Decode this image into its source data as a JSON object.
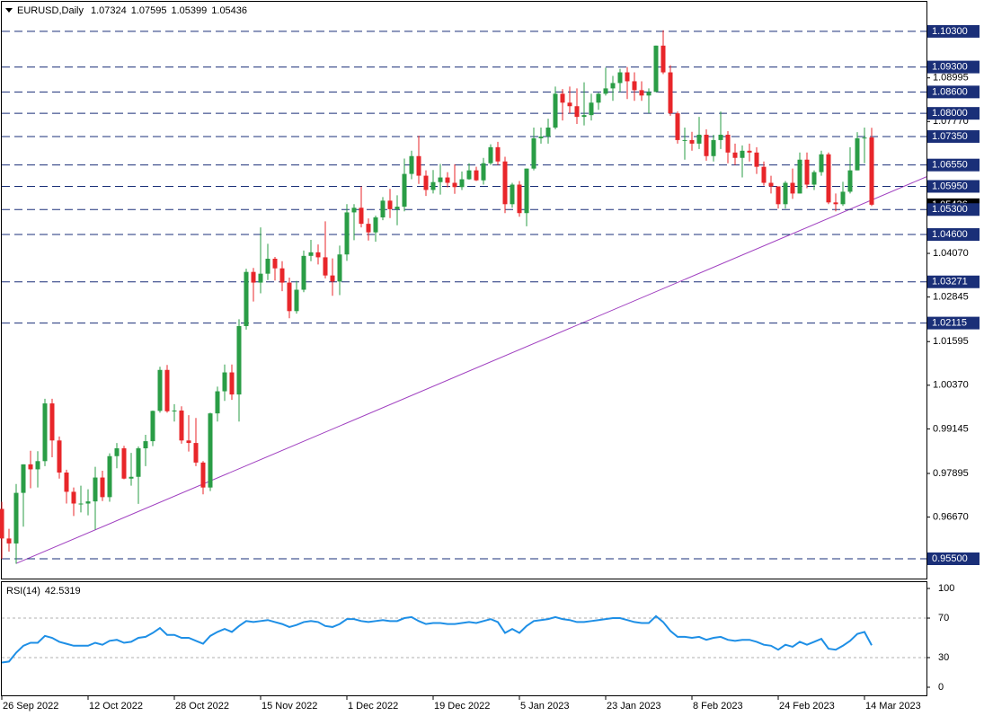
{
  "chart_data": [
    {
      "type": "candlestick",
      "title": "EURUSD,Daily",
      "open": [
        0.969,
        0.9607,
        0.9593,
        0.9735,
        0.9815,
        0.9801,
        0.9824,
        0.9986,
        0.9882,
        0.9792,
        0.9738,
        0.9705,
        0.9705,
        0.9711,
        0.9778,
        0.9723,
        0.9838,
        0.986,
        0.9775,
        0.978,
        0.986,
        0.988,
        0.9965,
        1.008,
        0.9964,
        0.9966,
        0.9882,
        0.9875,
        0.982,
        0.975,
        0.9958,
        1.002,
        1.0073,
        1.0011,
        1.0203,
        1.0355,
        1.0325,
        1.035,
        1.0392,
        1.0365,
        1.0325,
        1.0245,
        1.0305,
        1.04,
        1.041,
        1.0396,
        1.0345,
        1.0328,
        1.0404,
        1.0522,
        1.0535,
        1.049,
        1.0466,
        1.0508,
        1.0555,
        1.0531,
        1.0538,
        1.063,
        1.068,
        1.0625,
        1.0585,
        1.0607,
        1.062,
        1.0605,
        1.0593,
        1.0615,
        1.064,
        1.0612,
        1.066,
        1.0705,
        1.0665,
        1.0545,
        1.06,
        1.052,
        1.0645,
        1.073,
        1.0735,
        1.076,
        1.0855,
        1.083,
        1.082,
        1.079,
        1.0795,
        1.083,
        1.0855,
        1.087,
        1.0885,
        1.0915,
        1.089,
        1.0865,
        1.085,
        1.086,
        1.099,
        1.0915,
        1.08,
        1.0725,
        1.0725,
        1.0715,
        1.074,
        1.068,
        1.0725,
        1.074,
        1.069,
        1.0675,
        1.0695,
        1.069,
        1.065,
        1.0605,
        1.0595,
        1.0545,
        1.0605,
        1.0575,
        1.067,
        1.06,
        1.0635,
        1.0685,
        1.055,
        1.0545,
        1.058,
        1.064,
        1.073,
        1.07324
      ],
      "high": [
        0.971,
        0.9634,
        0.976,
        0.9815,
        0.9853,
        0.9852,
        0.9999,
        0.9999,
        0.9893,
        0.98,
        0.975,
        0.9755,
        0.9745,
        0.9808,
        0.9797,
        0.9846,
        0.9875,
        0.9867,
        0.9847,
        0.9865,
        0.9898,
        0.9966,
        1.0089,
        1.0094,
        0.9984,
        0.9978,
        0.9953,
        0.9945,
        0.9824,
        0.996,
        1.0033,
        1.0095,
        1.0095,
        1.0222,
        1.0364,
        1.0366,
        1.048,
        1.0434,
        1.0397,
        1.0385,
        1.0339,
        1.033,
        1.0415,
        1.0445,
        1.0432,
        1.0497,
        1.0393,
        1.0429,
        1.0545,
        1.0545,
        1.0595,
        1.0505,
        1.0513,
        1.0565,
        1.0588,
        1.057,
        1.0673,
        1.0695,
        1.0737,
        1.064,
        1.0641,
        1.0658,
        1.0635,
        1.0657,
        1.0637,
        1.066,
        1.065,
        1.0675,
        1.0713,
        1.072,
        1.0678,
        1.0605,
        1.061,
        1.0645,
        1.076,
        1.076,
        1.0785,
        1.0875,
        1.0868,
        1.0875,
        1.087,
        1.0887,
        1.0855,
        1.0858,
        1.0928,
        1.0905,
        1.0925,
        1.093,
        1.0915,
        1.089,
        1.087,
        1.099,
        1.1033,
        1.0935,
        1.0805,
        1.076,
        1.0748,
        1.079,
        1.0755,
        1.074,
        1.0805,
        1.075,
        1.0715,
        1.071,
        1.0715,
        1.0705,
        1.0665,
        1.0625,
        1.0595,
        1.061,
        1.0645,
        1.069,
        1.069,
        1.064,
        1.0695,
        1.069,
        1.0575,
        1.0608,
        1.0705,
        1.0747,
        1.076,
        1.07595
      ],
      "low": [
        0.955,
        0.957,
        0.9536,
        0.964,
        0.9748,
        0.975,
        0.981,
        0.9835,
        0.9775,
        0.9705,
        0.967,
        0.968,
        0.9672,
        0.9632,
        0.9712,
        0.971,
        0.9804,
        0.9773,
        0.9755,
        0.9704,
        0.981,
        0.9866,
        0.996,
        0.996,
        0.9935,
        0.9873,
        0.9851,
        0.981,
        0.9731,
        0.974,
        0.9935,
        0.9993,
        0.9996,
        0.9935,
        1.0193,
        1.0272,
        1.0295,
        1.0332,
        1.0331,
        1.0301,
        1.0225,
        1.0238,
        1.0298,
        1.0385,
        1.0376,
        1.0337,
        1.0288,
        1.029,
        1.0386,
        1.0444,
        1.048,
        1.0443,
        1.044,
        1.05,
        1.0506,
        1.0486,
        1.0525,
        1.0615,
        1.0602,
        1.0568,
        1.0575,
        1.0572,
        1.0592,
        1.0574,
        1.0585,
        1.0614,
        1.061,
        1.06,
        1.0655,
        1.0655,
        1.052,
        1.0535,
        1.051,
        1.0483,
        1.064,
        1.0715,
        1.0715,
        1.0755,
        1.078,
        1.08,
        1.077,
        1.0766,
        1.078,
        1.081,
        1.085,
        1.0835,
        1.086,
        1.084,
        1.0835,
        1.0835,
        1.08,
        1.086,
        1.091,
        1.0793,
        1.0715,
        1.067,
        1.0695,
        1.07,
        1.0667,
        1.0665,
        1.07,
        1.066,
        1.0655,
        1.062,
        1.0665,
        1.063,
        1.0597,
        1.0575,
        1.0533,
        1.0533,
        1.056,
        1.0575,
        1.059,
        1.0585,
        1.0625,
        1.0545,
        1.0525,
        1.054,
        1.0575,
        1.064,
        1.066,
        1.05399
      ],
      "close": [
        0.9607,
        0.9593,
        0.9735,
        0.9815,
        0.9801,
        0.9824,
        0.9986,
        0.9882,
        0.9792,
        0.9738,
        0.9705,
        0.9705,
        0.9711,
        0.9778,
        0.9723,
        0.9838,
        0.986,
        0.9775,
        0.978,
        0.986,
        0.988,
        0.9965,
        1.008,
        0.9964,
        0.9966,
        0.9882,
        0.9875,
        0.982,
        0.975,
        0.9958,
        1.002,
        1.0073,
        1.0011,
        1.0203,
        1.0355,
        1.0325,
        1.035,
        1.0392,
        1.0365,
        1.0325,
        1.0245,
        1.0305,
        1.04,
        1.041,
        1.0396,
        1.0345,
        1.0328,
        1.0404,
        1.0522,
        1.0535,
        1.049,
        1.0466,
        1.0508,
        1.0555,
        1.0531,
        1.0538,
        1.063,
        1.068,
        1.0625,
        1.0585,
        1.0607,
        1.062,
        1.0605,
        1.0593,
        1.0615,
        1.064,
        1.0612,
        1.066,
        1.0705,
        1.0665,
        1.0545,
        1.06,
        1.052,
        1.0645,
        1.073,
        1.0735,
        1.076,
        1.0855,
        1.083,
        1.082,
        1.079,
        1.0795,
        1.083,
        1.0855,
        1.087,
        1.0885,
        1.0915,
        1.089,
        1.0865,
        1.085,
        1.086,
        1.099,
        1.0915,
        1.08,
        1.0725,
        1.0725,
        1.0715,
        1.074,
        1.068,
        1.0725,
        1.074,
        1.069,
        1.0675,
        1.0695,
        1.069,
        1.065,
        1.0605,
        1.0595,
        1.0545,
        1.0605,
        1.0575,
        1.067,
        1.06,
        1.0635,
        1.0685,
        1.055,
        1.0545,
        1.058,
        1.064,
        1.073,
        1.0732,
        1.05436
      ],
      "up_color": "#2a9d46",
      "down_color": "#e8262a",
      "ylim": [
        0.9492,
        1.1113
      ],
      "yticks": [
        1.08995,
        {
          "value": 1.0777,
          "label": "1.07770"
        },
        {
          "value": 1.0407,
          "label": "1.04070"
        },
        1.02845,
        1.01595,
        {
          "value": 1.0037,
          "label": "1.00370"
        },
        0.99145,
        0.97895,
        {
          "value": 0.9667,
          "label": "0.96670"
        }
      ],
      "levels": [
        {
          "value": 1.103,
          "label": "1.10300"
        },
        {
          "value": 1.093,
          "label": "1.09300"
        },
        {
          "value": 1.086,
          "label": "1.08600"
        },
        {
          "value": 1.08,
          "label": "1.08000"
        },
        {
          "value": 1.0735,
          "label": "1.07350"
        },
        {
          "value": 1.0655,
          "label": "1.06550"
        },
        {
          "value": 1.0595,
          "label": "1.05950"
        },
        {
          "value": 1.053,
          "label": "1.05300"
        },
        {
          "value": 1.046,
          "label": "1.04600"
        },
        1.03271,
        1.02115,
        {
          "value": 0.955,
          "label": "0.95500"
        }
      ],
      "level_color": "#1a2f78",
      "trendline": {
        "values": [
          0.9537,
          1.0622
        ],
        "color": "#a040c0"
      }
    },
    {
      "type": "line",
      "title": "RSI(14)",
      "categories": [
        "26 Sep 2022",
        null,
        null,
        null,
        null,
        null,
        null,
        null,
        null,
        null,
        null,
        null,
        "12 Oct 2022",
        null,
        null,
        null,
        null,
        null,
        null,
        null,
        null,
        null,
        null,
        null,
        "28 Oct 2022",
        null,
        null,
        null,
        null,
        null,
        null,
        null,
        null,
        null,
        null,
        null,
        "15 Nov 2022",
        null,
        null,
        null,
        null,
        null,
        null,
        null,
        null,
        null,
        null,
        null,
        "1 Dec 2022",
        null,
        null,
        null,
        null,
        null,
        null,
        null,
        null,
        null,
        null,
        null,
        "19 Dec 2022",
        null,
        null,
        null,
        null,
        null,
        null,
        null,
        null,
        null,
        null,
        null,
        "5 Jan 2023",
        null,
        null,
        null,
        null,
        null,
        null,
        null,
        null,
        null,
        null,
        null,
        "23 Jan 2023",
        null,
        null,
        null,
        null,
        null,
        null,
        null,
        null,
        null,
        null,
        null,
        "8 Feb 2023",
        null,
        null,
        null,
        null,
        null,
        null,
        null,
        null,
        null,
        null,
        null,
        "24 Feb 2023",
        null,
        null,
        null,
        null,
        null,
        null,
        null,
        null,
        null,
        null,
        null,
        "14 Mar 2023",
        null
      ],
      "values": [
        25,
        26,
        35,
        42,
        45,
        45,
        52,
        50,
        46,
        44,
        42,
        42,
        42,
        45,
        43,
        47,
        48,
        45,
        46,
        50,
        51,
        55,
        60,
        53,
        53,
        50,
        50,
        47,
        44,
        52,
        56,
        59,
        56,
        62,
        67,
        66,
        67,
        68,
        66,
        64,
        61,
        63,
        66,
        67,
        66,
        62,
        61,
        64,
        69,
        69,
        67,
        66,
        67,
        68,
        67,
        67,
        70,
        71,
        67,
        64,
        65,
        65,
        64,
        64,
        65,
        66,
        65,
        67,
        69,
        66,
        55,
        59,
        55,
        62,
        67,
        68,
        69,
        71,
        69,
        68,
        66,
        66,
        67,
        68,
        69,
        70,
        70,
        68,
        66,
        65,
        65,
        72,
        66,
        57,
        51,
        51,
        50,
        51,
        48,
        50,
        51,
        48,
        47,
        48,
        48,
        46,
        43,
        42,
        38,
        43,
        41,
        46,
        43,
        46,
        49,
        39,
        38,
        42,
        47,
        54,
        56,
        42.5319
      ],
      "color": "#1e8fe6",
      "ylim": [
        -8.2,
        106.4
      ],
      "yticks": [
        0,
        30,
        70,
        100
      ],
      "levels": [
        30,
        70
      ]
    }
  ]
}
